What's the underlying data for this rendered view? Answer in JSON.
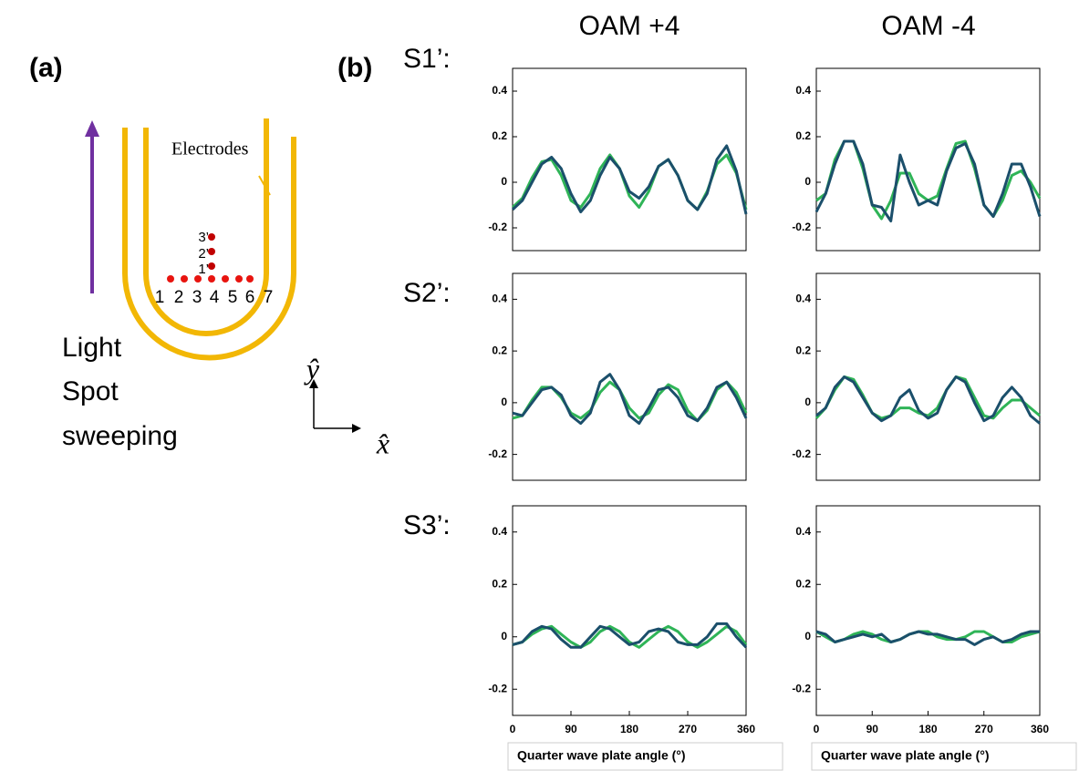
{
  "panel_a": {
    "label": "(a)",
    "electrodes": "Electrodes",
    "spots": [
      "1",
      "2",
      "3",
      "4",
      "5",
      "6",
      "7"
    ],
    "spots_y": [
      "1’",
      "2’",
      "3’"
    ],
    "light_label": [
      "Light",
      "Spot",
      "sweeping"
    ],
    "axes": [
      "x̂",
      "ŷ"
    ]
  },
  "panel_b_label": "(b)",
  "column_titles": [
    "OAM +4",
    "OAM -4"
  ],
  "row_labels": [
    "S1’:",
    "S2’:",
    "S3’:"
  ],
  "chart_data": [
    {
      "type": "line",
      "x": [
        0,
        15,
        30,
        45,
        60,
        75,
        90,
        105,
        120,
        135,
        150,
        165,
        180,
        195,
        210,
        225,
        240,
        255,
        270,
        285,
        300,
        315,
        330,
        345,
        360
      ],
      "xlim": [
        0,
        360
      ],
      "ylim": [
        -0.3,
        0.5
      ],
      "yticks": [
        -0.2,
        0,
        0.2,
        0.4
      ],
      "series": [
        {
          "color": "#2fb457",
          "values": [
            -0.11,
            -0.07,
            0.02,
            0.09,
            0.1,
            0.03,
            -0.08,
            -0.11,
            -0.05,
            0.06,
            0.12,
            0.06,
            -0.06,
            -0.11,
            -0.04,
            0.07,
            0.1,
            0.03,
            -0.08,
            -0.12,
            -0.04,
            0.08,
            0.12,
            0.04,
            -0.12
          ]
        },
        {
          "color": "#1b4f6b",
          "values": [
            -0.12,
            -0.08,
            0.0,
            0.08,
            0.11,
            0.06,
            -0.05,
            -0.13,
            -0.08,
            0.03,
            0.11,
            0.06,
            -0.04,
            -0.07,
            -0.02,
            0.07,
            0.1,
            0.03,
            -0.08,
            -0.12,
            -0.05,
            0.1,
            0.16,
            0.05,
            -0.14
          ]
        }
      ]
    },
    {
      "type": "line",
      "x": [
        0,
        15,
        30,
        45,
        60,
        75,
        90,
        105,
        120,
        135,
        150,
        165,
        180,
        195,
        210,
        225,
        240,
        255,
        270,
        285,
        300,
        315,
        330,
        345,
        360
      ],
      "xlim": [
        0,
        360
      ],
      "ylim": [
        -0.3,
        0.5
      ],
      "yticks": [
        -0.2,
        0,
        0.2,
        0.4
      ],
      "series": [
        {
          "color": "#2fb457",
          "values": [
            -0.08,
            -0.05,
            0.1,
            0.18,
            0.18,
            0.06,
            -0.1,
            -0.16,
            -0.08,
            0.04,
            0.04,
            -0.05,
            -0.08,
            -0.06,
            0.06,
            0.17,
            0.18,
            0.06,
            -0.1,
            -0.15,
            -0.08,
            0.03,
            0.05,
            0.0,
            -0.07
          ]
        },
        {
          "color": "#1b4f6b",
          "values": [
            -0.13,
            -0.05,
            0.08,
            0.18,
            0.18,
            0.08,
            -0.1,
            -0.11,
            -0.17,
            0.12,
            0.0,
            -0.1,
            -0.08,
            -0.1,
            0.05,
            0.15,
            0.17,
            0.08,
            -0.1,
            -0.15,
            -0.05,
            0.08,
            0.08,
            -0.02,
            -0.15
          ]
        }
      ]
    },
    {
      "type": "line",
      "x": [
        0,
        15,
        30,
        45,
        60,
        75,
        90,
        105,
        120,
        135,
        150,
        165,
        180,
        195,
        210,
        225,
        240,
        255,
        270,
        285,
        300,
        315,
        330,
        345,
        360
      ],
      "xlim": [
        0,
        360
      ],
      "ylim": [
        -0.3,
        0.5
      ],
      "yticks": [
        -0.2,
        0,
        0.2,
        0.4
      ],
      "series": [
        {
          "color": "#2fb457",
          "values": [
            -0.06,
            -0.05,
            0.01,
            0.06,
            0.06,
            0.02,
            -0.04,
            -0.06,
            -0.03,
            0.04,
            0.08,
            0.05,
            -0.02,
            -0.06,
            -0.04,
            0.03,
            0.07,
            0.05,
            -0.03,
            -0.07,
            -0.03,
            0.05,
            0.08,
            0.04,
            -0.04
          ]
        },
        {
          "color": "#1b4f6b",
          "values": [
            -0.04,
            -0.05,
            0.0,
            0.05,
            0.06,
            0.03,
            -0.05,
            -0.08,
            -0.04,
            0.08,
            0.11,
            0.05,
            -0.05,
            -0.08,
            -0.02,
            0.05,
            0.06,
            0.02,
            -0.05,
            -0.07,
            -0.02,
            0.06,
            0.08,
            0.02,
            -0.06
          ]
        }
      ]
    },
    {
      "type": "line",
      "x": [
        0,
        15,
        30,
        45,
        60,
        75,
        90,
        105,
        120,
        135,
        150,
        165,
        180,
        195,
        210,
        225,
        240,
        255,
        270,
        285,
        300,
        315,
        330,
        345,
        360
      ],
      "xlim": [
        0,
        360
      ],
      "ylim": [
        -0.3,
        0.5
      ],
      "yticks": [
        -0.2,
        0,
        0.2,
        0.4
      ],
      "series": [
        {
          "color": "#2fb457",
          "values": [
            -0.06,
            -0.02,
            0.05,
            0.1,
            0.09,
            0.03,
            -0.04,
            -0.06,
            -0.05,
            -0.02,
            -0.02,
            -0.04,
            -0.05,
            -0.02,
            0.05,
            0.1,
            0.09,
            0.02,
            -0.05,
            -0.06,
            -0.02,
            0.01,
            0.01,
            -0.02,
            -0.05
          ]
        },
        {
          "color": "#1b4f6b",
          "values": [
            -0.05,
            -0.02,
            0.06,
            0.1,
            0.08,
            0.02,
            -0.04,
            -0.07,
            -0.05,
            0.02,
            0.05,
            -0.03,
            -0.06,
            -0.04,
            0.05,
            0.1,
            0.08,
            0.0,
            -0.07,
            -0.05,
            0.02,
            0.06,
            0.02,
            -0.05,
            -0.08
          ]
        }
      ]
    },
    {
      "type": "line",
      "x": [
        0,
        15,
        30,
        45,
        60,
        75,
        90,
        105,
        120,
        135,
        150,
        165,
        180,
        195,
        210,
        225,
        240,
        255,
        270,
        285,
        300,
        315,
        330,
        345,
        360
      ],
      "xlim": [
        0,
        360
      ],
      "ylim": [
        -0.3,
        0.5
      ],
      "yticks": [
        -0.2,
        0,
        0.2,
        0.4
      ],
      "xticks": [
        0,
        90,
        180,
        270,
        360
      ],
      "xlabel": "Quarter wave plate angle (°)",
      "series": [
        {
          "color": "#2fb457",
          "values": [
            -0.03,
            -0.02,
            0.01,
            0.03,
            0.04,
            0.01,
            -0.02,
            -0.04,
            -0.02,
            0.02,
            0.04,
            0.02,
            -0.02,
            -0.04,
            -0.01,
            0.02,
            0.04,
            0.02,
            -0.02,
            -0.04,
            -0.02,
            0.01,
            0.04,
            0.02,
            -0.03
          ]
        },
        {
          "color": "#1b4f6b",
          "values": [
            -0.03,
            -0.02,
            0.02,
            0.04,
            0.03,
            -0.01,
            -0.04,
            -0.04,
            0.0,
            0.04,
            0.03,
            0.0,
            -0.03,
            -0.02,
            0.02,
            0.03,
            0.02,
            -0.02,
            -0.03,
            -0.03,
            0.0,
            0.05,
            0.05,
            0.0,
            -0.04
          ]
        }
      ]
    },
    {
      "type": "line",
      "x": [
        0,
        15,
        30,
        45,
        60,
        75,
        90,
        105,
        120,
        135,
        150,
        165,
        180,
        195,
        210,
        225,
        240,
        255,
        270,
        285,
        300,
        315,
        330,
        345,
        360
      ],
      "xlim": [
        0,
        360
      ],
      "ylim": [
        -0.3,
        0.5
      ],
      "yticks": [
        -0.2,
        0,
        0.2,
        0.4
      ],
      "xticks": [
        0,
        90,
        180,
        270,
        360
      ],
      "xlabel": "Quarter wave plate angle (°)",
      "series": [
        {
          "color": "#2fb457",
          "values": [
            0.02,
            0.0,
            -0.02,
            -0.01,
            0.01,
            0.02,
            0.01,
            -0.01,
            -0.02,
            -0.01,
            0.01,
            0.02,
            0.02,
            0.0,
            -0.01,
            -0.01,
            0.0,
            0.02,
            0.02,
            0.0,
            -0.02,
            -0.02,
            0.0,
            0.01,
            0.02
          ]
        },
        {
          "color": "#1b4f6b",
          "values": [
            0.02,
            0.01,
            -0.02,
            -0.01,
            0.0,
            0.01,
            0.0,
            0.01,
            -0.02,
            -0.01,
            0.01,
            0.02,
            0.01,
            0.01,
            0.0,
            -0.01,
            -0.01,
            -0.03,
            -0.01,
            0.0,
            -0.02,
            -0.01,
            0.01,
            0.02,
            0.02
          ]
        }
      ]
    }
  ]
}
